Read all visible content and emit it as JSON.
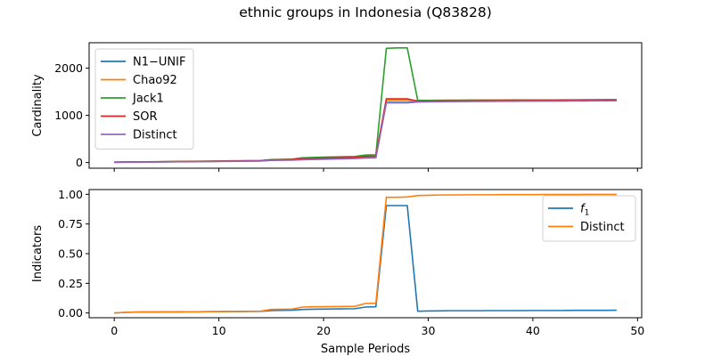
{
  "chart_data": {
    "title": "ethnic groups in Indonesia (Q83828)",
    "xlabel": "Sample Periods",
    "x": [
      0,
      1,
      2,
      3,
      4,
      5,
      6,
      7,
      8,
      9,
      10,
      11,
      12,
      13,
      14,
      15,
      16,
      17,
      18,
      19,
      20,
      21,
      22,
      23,
      24,
      25,
      26,
      27,
      28,
      29,
      30,
      31,
      32,
      33,
      34,
      35,
      36,
      37,
      38,
      39,
      40,
      41,
      42,
      43,
      44,
      45,
      46,
      47,
      48
    ],
    "xlim": [
      -2.4,
      50.4
    ],
    "xticks": [
      0,
      10,
      20,
      30,
      40,
      50
    ],
    "panels": [
      {
        "type": "line",
        "ylabel": "Cardinality",
        "ylim": [
          -120,
          2540
        ],
        "yticks": [
          0,
          1000,
          2000
        ],
        "legend": "upper-left",
        "series": [
          {
            "name": "N1−UNIF",
            "color": "#1f77b4",
            "values": [
              5,
              8,
              10,
              12,
              14,
              16,
              18,
              19,
              21,
              23,
              26,
              28,
              30,
              32,
              34,
              50,
              55,
              60,
              75,
              80,
              85,
              90,
              95,
              98,
              105,
              108,
              1275,
              1275,
              1275,
              1290,
              1292,
              1294,
              1296,
              1298,
              1299,
              1300,
              1301,
              1302,
              1303,
              1304,
              1305,
              1306,
              1307,
              1308,
              1309,
              1310,
              1311,
              1312,
              1313
            ]
          },
          {
            "name": "Chao92",
            "color": "#ff7f0e",
            "values": [
              8,
              11,
              13,
              15,
              17,
              19,
              21,
              23,
              25,
              28,
              31,
              34,
              36,
              38,
              40,
              58,
              63,
              68,
              95,
              100,
              105,
              110,
              115,
              120,
              150,
              155,
              1320,
              1320,
              1320,
              1310,
              1312,
              1314,
              1316,
              1317,
              1318,
              1319,
              1320,
              1321,
              1322,
              1322,
              1323,
              1324,
              1325,
              1326,
              1327,
              1328,
              1329,
              1330,
              1331
            ]
          },
          {
            "name": "Jack1",
            "color": "#2ca02c",
            "values": [
              10,
              13,
              15,
              17,
              19,
              21,
              23,
              25,
              27,
              30,
              33,
              36,
              38,
              40,
              42,
              62,
              67,
              72,
              100,
              108,
              115,
              120,
              125,
              130,
              160,
              165,
              2420,
              2430,
              2430,
              1320,
              1318,
              1320,
              1322,
              1323,
              1324,
              1324,
              1325,
              1325,
              1326,
              1326,
              1327,
              1328,
              1328,
              1329,
              1330,
              1331,
              1332,
              1333,
              1334
            ]
          },
          {
            "name": "SOR",
            "color": "#d62728",
            "values": [
              7,
              10,
              12,
              14,
              16,
              18,
              20,
              22,
              24,
              26,
              29,
              32,
              34,
              36,
              38,
              55,
              60,
              65,
              85,
              90,
              95,
              100,
              105,
              110,
              130,
              135,
              1350,
              1350,
              1350,
              1300,
              1302,
              1305,
              1307,
              1308,
              1309,
              1310,
              1311,
              1312,
              1313,
              1314,
              1315,
              1316,
              1317,
              1318,
              1319,
              1320,
              1321,
              1322,
              1323
            ]
          },
          {
            "name": "Distinct",
            "color": "#9467bd",
            "values": [
              3,
              5,
              7,
              9,
              11,
              13,
              15,
              16,
              18,
              20,
              23,
              25,
              27,
              29,
              31,
              45,
              48,
              50,
              60,
              65,
              70,
              75,
              80,
              85,
              95,
              100,
              1265,
              1265,
              1265,
              1285,
              1287,
              1289,
              1291,
              1293,
              1295,
              1296,
              1297,
              1298,
              1299,
              1300,
              1301,
              1302,
              1303,
              1304,
              1305,
              1306,
              1307,
              1308,
              1309
            ]
          }
        ]
      },
      {
        "type": "line",
        "ylabel": "Indicators",
        "ylim": [
          -0.04,
          1.04
        ],
        "yticks": [
          0.0,
          0.25,
          0.5,
          0.75,
          1.0
        ],
        "ytick_labels": [
          "0.00",
          "0.25",
          "0.50",
          "0.75",
          "1.00"
        ],
        "legend": "upper-right",
        "series": [
          {
            "name": "f1",
            "color": "#1f77b4",
            "values": [
              0.0,
              0.005,
              0.007,
              0.008,
              0.008,
              0.009,
              0.009,
              0.01,
              0.01,
              0.011,
              0.011,
              0.012,
              0.012,
              0.013,
              0.014,
              0.02,
              0.022,
              0.023,
              0.03,
              0.032,
              0.033,
              0.034,
              0.035,
              0.036,
              0.05,
              0.052,
              0.905,
              0.905,
              0.905,
              0.015,
              0.017,
              0.018,
              0.019,
              0.019,
              0.019,
              0.019,
              0.02,
              0.02,
              0.02,
              0.02,
              0.021,
              0.021,
              0.021,
              0.021,
              0.022,
              0.022,
              0.022,
              0.022,
              0.023
            ]
          },
          {
            "name": "Distinct",
            "color": "#ff7f0e",
            "values": [
              0.0,
              0.005,
              0.007,
              0.008,
              0.008,
              0.009,
              0.009,
              0.01,
              0.01,
              0.011,
              0.012,
              0.013,
              0.014,
              0.015,
              0.016,
              0.03,
              0.032,
              0.033,
              0.05,
              0.052,
              0.053,
              0.054,
              0.055,
              0.056,
              0.08,
              0.082,
              0.975,
              0.975,
              0.978,
              0.99,
              0.992,
              0.994,
              0.995,
              0.995,
              0.996,
              0.996,
              0.996,
              0.997,
              0.997,
              0.997,
              0.997,
              0.998,
              0.998,
              0.998,
              0.998,
              0.999,
              0.999,
              0.999,
              0.999
            ]
          }
        ]
      }
    ]
  }
}
